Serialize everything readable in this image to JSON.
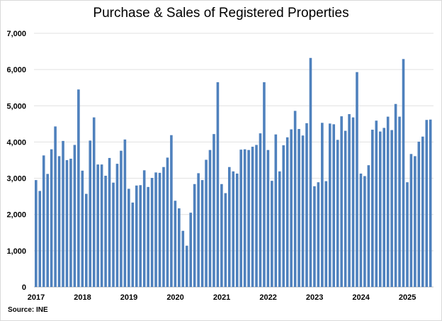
{
  "chart_data": {
    "type": "bar",
    "title": "Purchase & Sales of Registered Properties",
    "source": "Source: INE",
    "xlabel": "",
    "ylabel": "",
    "ylim": [
      0,
      7000
    ],
    "yticks": [
      "0",
      "1,000",
      "2,000",
      "3,000",
      "4,000",
      "5,000",
      "6,000",
      "7,000"
    ],
    "xticks": [
      "2017",
      "2018",
      "2019",
      "2020",
      "2021",
      "2022",
      "2023",
      "2024",
      "2025"
    ],
    "grid": true,
    "color": "#4F81BD",
    "start": "2017-01",
    "frequency": "monthly",
    "values": [
      2950,
      2650,
      3630,
      3120,
      3800,
      4430,
      3610,
      4030,
      3500,
      3540,
      3920,
      5450,
      3210,
      2570,
      4040,
      4680,
      3380,
      3380,
      3070,
      3560,
      2880,
      3400,
      3760,
      4070,
      2710,
      2330,
      2800,
      2810,
      3220,
      2760,
      3010,
      3160,
      3150,
      3310,
      3570,
      4190,
      2380,
      2170,
      1550,
      1140,
      2050,
      2840,
      3140,
      2950,
      3510,
      3780,
      4220,
      5650,
      2840,
      2590,
      3310,
      3190,
      3130,
      3790,
      3800,
      3780,
      3870,
      3920,
      4240,
      5650,
      3780,
      2930,
      4210,
      3190,
      3910,
      4130,
      4350,
      4860,
      4360,
      4180,
      4520,
      6320,
      2780,
      2890,
      4530,
      2920,
      4510,
      4490,
      4060,
      4710,
      4310,
      4770,
      4680,
      5930,
      3130,
      3060,
      3360,
      4340,
      4590,
      4290,
      4390,
      4700,
      4330,
      5050,
      4700,
      6290,
      2890,
      3670,
      3610,
      4010,
      4150,
      4610,
      4620
    ]
  }
}
